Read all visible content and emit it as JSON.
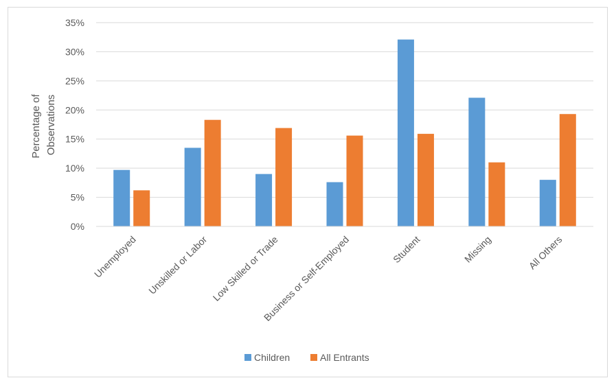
{
  "chart_data": {
    "type": "bar",
    "title": "",
    "xlabel": "",
    "ylabel_lines": [
      "Percentage of",
      "Observations"
    ],
    "categories": [
      "Unemployed",
      "Unskilled or Labor",
      "Low Skilled or Trade",
      "Business or Self-Employed",
      "Student",
      "Missing",
      "All Others"
    ],
    "series": [
      {
        "name": "Children",
        "color": "#5b9bd5",
        "values": [
          9.7,
          13.5,
          9.0,
          7.6,
          32.1,
          22.1,
          8.0
        ]
      },
      {
        "name": "All Entrants",
        "color": "#ed7d31",
        "values": [
          6.2,
          18.3,
          16.9,
          15.6,
          15.9,
          11.0,
          19.3
        ]
      }
    ],
    "ylim": [
      0,
      35
    ],
    "yticks": [
      0,
      5,
      10,
      15,
      20,
      25,
      30,
      35
    ],
    "ytick_format": "percent",
    "grid": true,
    "legend_position": "bottom"
  }
}
